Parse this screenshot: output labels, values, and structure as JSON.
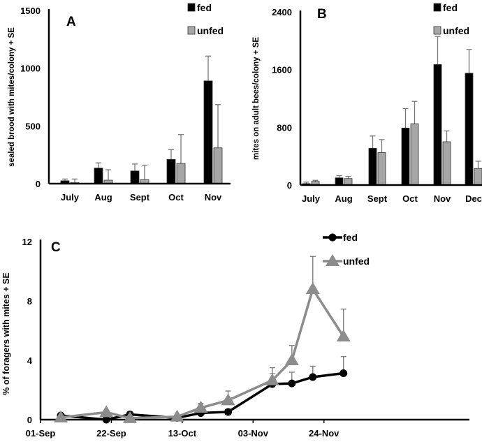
{
  "chart_data": [
    {
      "type": "bar",
      "panel": "A",
      "ylabel": "sealed brood with mites/colony + SE",
      "ylim": [
        0,
        1500
      ],
      "yticks": [
        0,
        500,
        1000,
        1500
      ],
      "categories": [
        "July",
        "Aug",
        "Sept",
        "Oct",
        "Nov"
      ],
      "series": [
        {
          "name": "fed",
          "color": "#000000",
          "values": [
            25,
            135,
            110,
            210,
            890
          ],
          "upper_error": [
            40,
            180,
            170,
            295,
            1105
          ]
        },
        {
          "name": "unfed",
          "color": "#a6a6a6",
          "values": [
            8,
            30,
            35,
            175,
            310
          ],
          "upper_error": [
            40,
            120,
            160,
            425,
            685
          ]
        }
      ]
    },
    {
      "type": "bar",
      "panel": "B",
      "ylabel": "mites on adult bees/colony + SE",
      "ylim": [
        0,
        2400
      ],
      "yticks": [
        0,
        800,
        1600,
        2400
      ],
      "categories": [
        "July",
        "Aug",
        "Sept",
        "Oct",
        "Nov",
        "Dec"
      ],
      "series": [
        {
          "name": "fed",
          "color": "#000000",
          "values": [
            20,
            100,
            510,
            790,
            1670,
            1550
          ],
          "upper_error": [
            40,
            130,
            680,
            1060,
            2060,
            1880
          ]
        },
        {
          "name": "unfed",
          "color": "#a6a6a6",
          "values": [
            50,
            90,
            450,
            850,
            600,
            230
          ],
          "upper_error": [
            65,
            120,
            630,
            1160,
            750,
            330
          ]
        }
      ]
    },
    {
      "type": "line",
      "panel": "C",
      "ylabel": "% of foragers with mites + SE",
      "ylim": [
        0,
        12
      ],
      "yticks": [
        0,
        4,
        8,
        12
      ],
      "xlabel_unit": "days since 01-Sep",
      "xticks": [
        {
          "day": 0,
          "label": "01-Sep"
        },
        {
          "day": 21,
          "label": "22-Sep"
        },
        {
          "day": 42,
          "label": "13-Oct"
        },
        {
          "day": 63,
          "label": "03-Nov"
        },
        {
          "day": 84,
          "label": "24-Nov"
        }
      ],
      "x": [
        6,
        19.5,
        26.5,
        40.5,
        47.5,
        55.6,
        68.7,
        74.5,
        80.7,
        89.8
      ],
      "series": [
        {
          "name": "fed",
          "color": "#000000",
          "marker": "circle",
          "values": [
            0.28,
            0,
            0.35,
            0.12,
            0.45,
            0.52,
            2.4,
            2.44,
            2.87,
            3.13
          ],
          "upper_error": [
            null,
            null,
            null,
            null,
            null,
            null,
            3.1,
            3.2,
            3.6,
            4.25
          ]
        },
        {
          "name": "unfed",
          "color": "#8c8c8c",
          "marker": "triangle",
          "values": [
            0.15,
            0.5,
            0.1,
            0.2,
            0.8,
            1.3,
            2.65,
            4.0,
            8.8,
            5.6
          ],
          "upper_error": [
            null,
            null,
            null,
            null,
            1.1,
            1.93,
            3.5,
            5.0,
            11.0,
            7.45
          ]
        }
      ]
    }
  ]
}
